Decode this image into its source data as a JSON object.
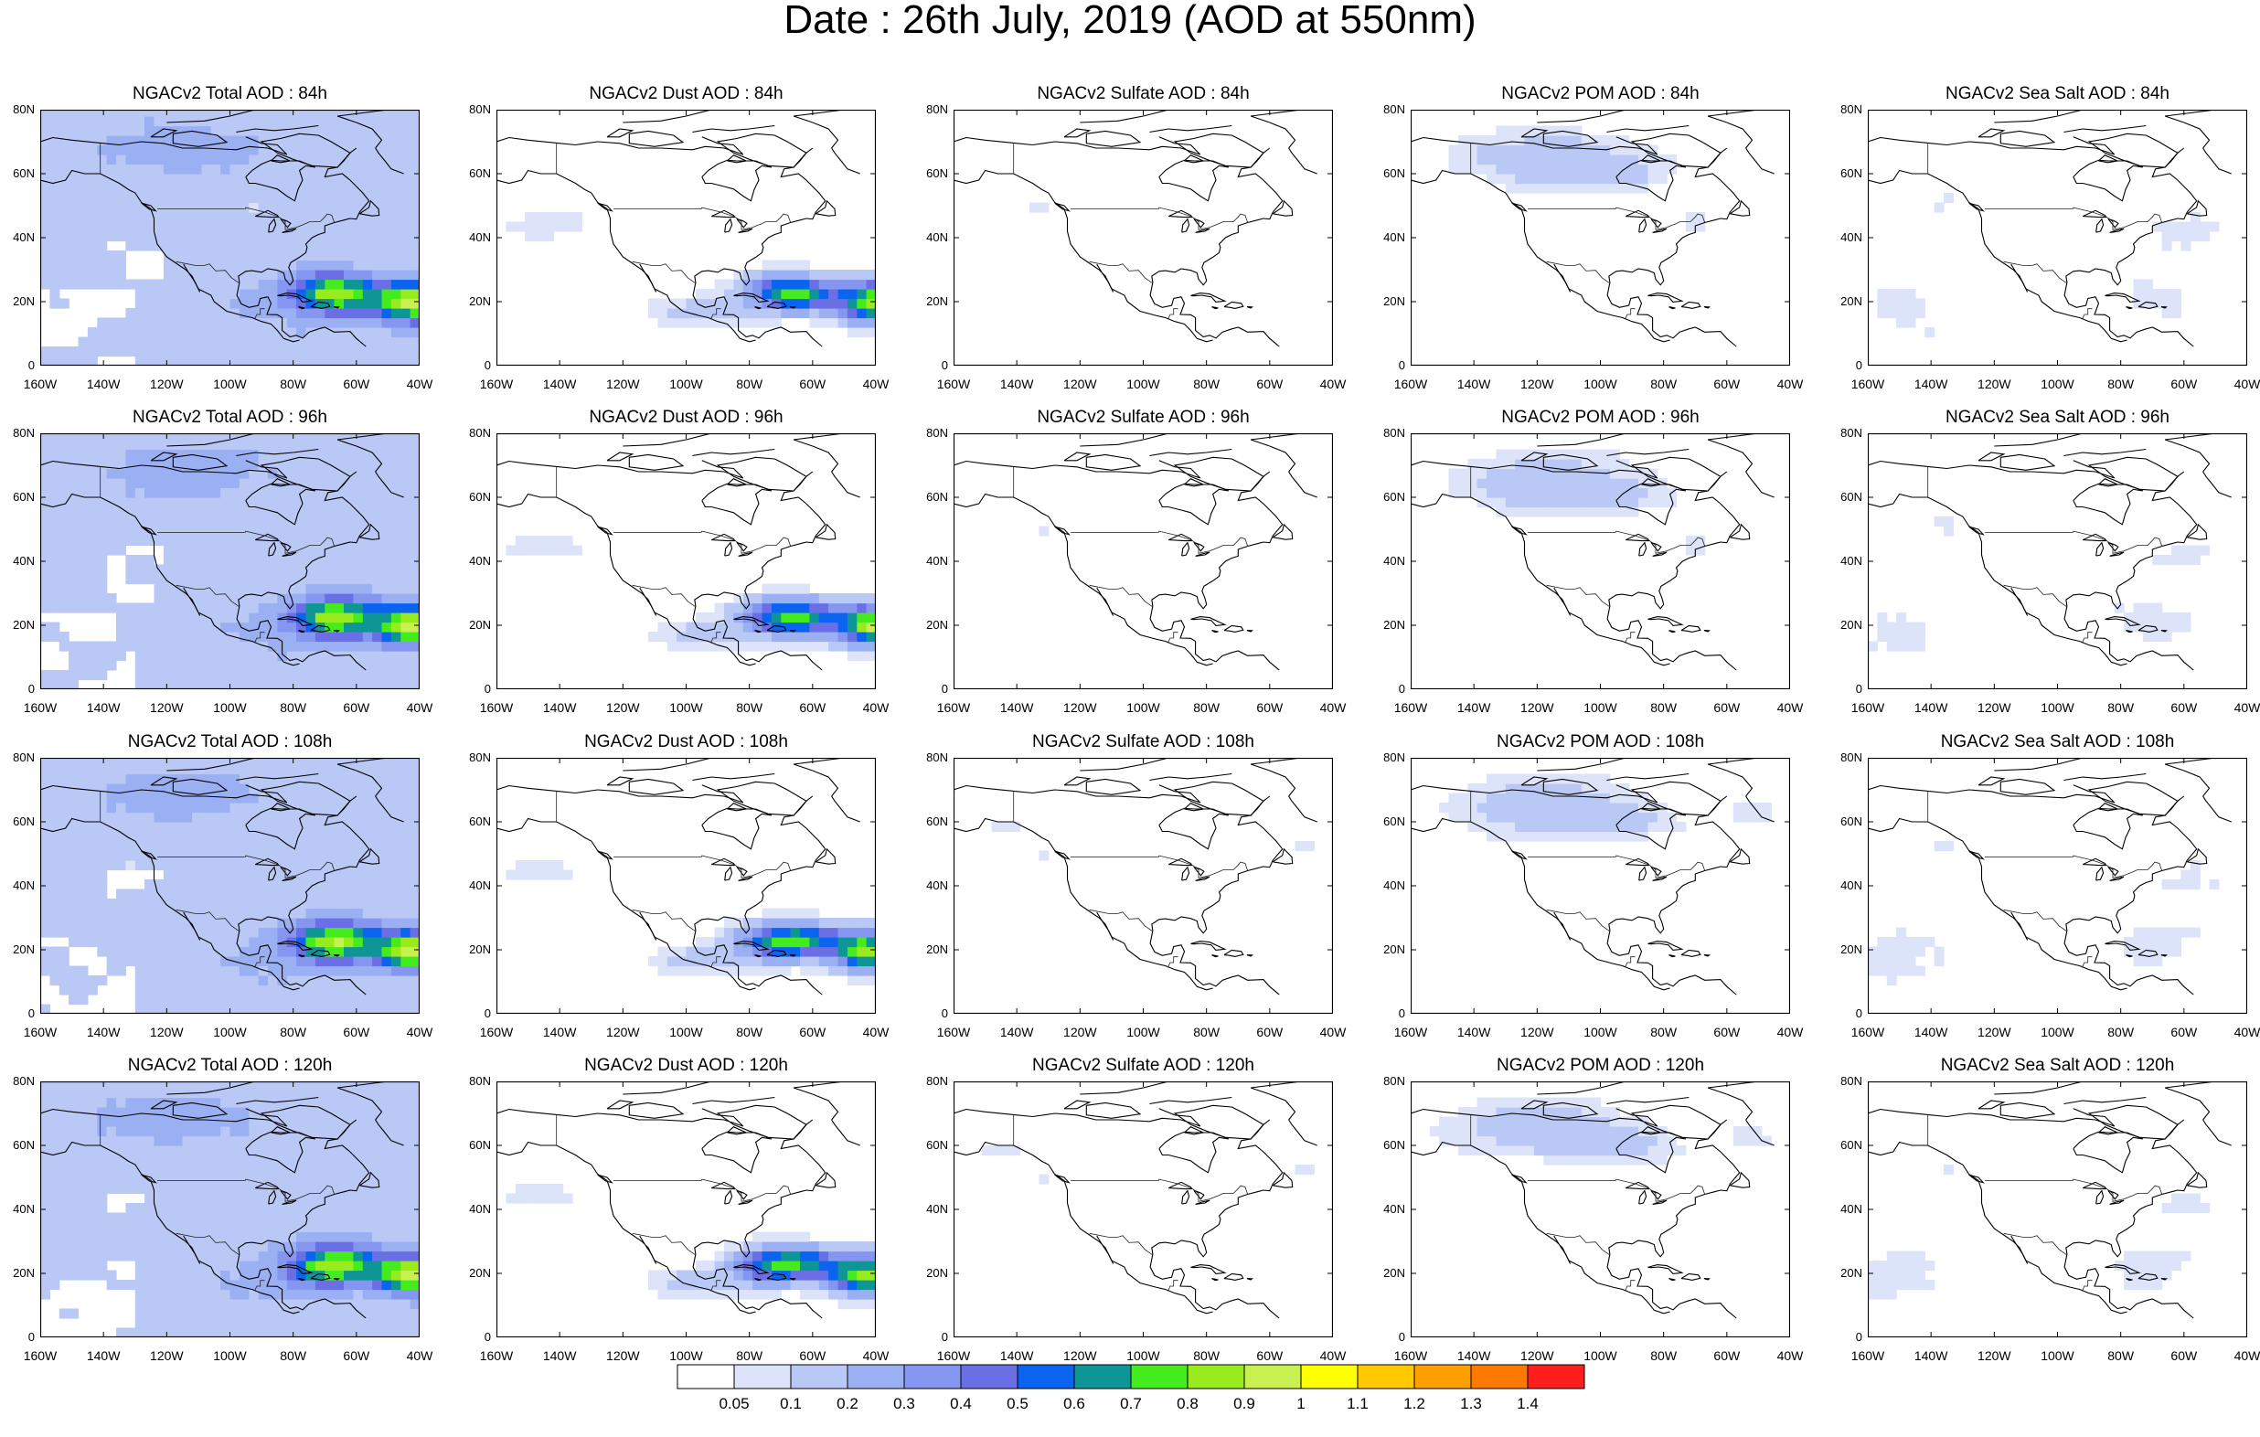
{
  "figure": {
    "title": "Date : 26th July, 2019 (AOD at 550nm)"
  },
  "chart_data": {
    "type": "heatmap",
    "title": "Date : 26th July, 2019 (AOD at 550nm)",
    "rows": [
      "84h",
      "96h",
      "108h",
      "120h"
    ],
    "columns": [
      "Total",
      "Dust",
      "Sulfate",
      "POM",
      "Sea Salt"
    ],
    "x_ticks": [
      "160W",
      "140W",
      "120W",
      "100W",
      "80W",
      "60W",
      "40W"
    ],
    "y_ticks": [
      "0",
      "20N",
      "40N",
      "60N",
      "80N"
    ],
    "xlim": [
      -160,
      -40
    ],
    "ylim": [
      0,
      80
    ],
    "panels": [
      {
        "title": "NGACv2 Total AOD : 84h",
        "species": "total",
        "lead": 84
      },
      {
        "title": "NGACv2 Dust AOD : 84h",
        "species": "dust",
        "lead": 84
      },
      {
        "title": "NGACv2 Sulfate AOD : 84h",
        "species": "sulfate",
        "lead": 84
      },
      {
        "title": "NGACv2 POM AOD : 84h",
        "species": "pom",
        "lead": 84
      },
      {
        "title": "NGACv2 Sea Salt AOD : 84h",
        "species": "seasalt",
        "lead": 84
      },
      {
        "title": "NGACv2 Total AOD : 96h",
        "species": "total",
        "lead": 96
      },
      {
        "title": "NGACv2 Dust AOD : 96h",
        "species": "dust",
        "lead": 96
      },
      {
        "title": "NGACv2 Sulfate AOD : 96h",
        "species": "sulfate",
        "lead": 96
      },
      {
        "title": "NGACv2 POM AOD : 96h",
        "species": "pom",
        "lead": 96
      },
      {
        "title": "NGACv2 Sea Salt AOD : 96h",
        "species": "seasalt",
        "lead": 96
      },
      {
        "title": "NGACv2 Total AOD : 108h",
        "species": "total",
        "lead": 108
      },
      {
        "title": "NGACv2 Dust AOD : 108h",
        "species": "dust",
        "lead": 108
      },
      {
        "title": "NGACv2 Sulfate AOD : 108h",
        "species": "sulfate",
        "lead": 108
      },
      {
        "title": "NGACv2 POM AOD : 108h",
        "species": "pom",
        "lead": 108
      },
      {
        "title": "NGACv2 Sea Salt AOD : 108h",
        "species": "seasalt",
        "lead": 108
      },
      {
        "title": "NGACv2 Total AOD : 120h",
        "species": "total",
        "lead": 120
      },
      {
        "title": "NGACv2 Dust AOD : 120h",
        "species": "dust",
        "lead": 120
      },
      {
        "title": "NGACv2 Sulfate AOD : 120h",
        "species": "sulfate",
        "lead": 120
      },
      {
        "title": "NGACv2 POM AOD : 120h",
        "species": "pom",
        "lead": 120
      },
      {
        "title": "NGACv2 Sea Salt  AOD : 120h",
        "species": "seasalt",
        "lead": 120
      }
    ],
    "colorbar": {
      "labels": [
        "0.05",
        "0.1",
        "0.2",
        "0.3",
        "0.4",
        "0.5",
        "0.6",
        "0.7",
        "0.8",
        "0.9",
        "1",
        "1.1",
        "1.2",
        "1.3",
        "1.4"
      ],
      "colors": [
        "#ffffff",
        "#dde4fa",
        "#bac8f6",
        "#9bb0f3",
        "#8596f0",
        "#6a6fe6",
        "#0a64f0",
        "#0e9696",
        "#44ec1e",
        "#98ec1e",
        "#c8f050",
        "#ffff00",
        "#ffc800",
        "#ffa000",
        "#ff7800",
        "#ff1e1e"
      ]
    },
    "map_features": {
      "coastline_color": "#000000",
      "dust_plume_center": {
        "lon": -65,
        "lat": 22
      },
      "dust_plume_peak_lon": -45,
      "note_species_levels": {
        "total": "widespread 0.05-0.2, peak 0.6-0.8 over Caribbean/Atlantic",
        "dust": "plume 0.1-0.7 over Caribbean and tropical Atlantic",
        "sulfate": "mostly below 0.05, patches 0.05-0.1",
        "pom": "0.05-0.2 over Canada",
        "seasalt": "patches 0.05-0.1 over oceans"
      }
    }
  }
}
